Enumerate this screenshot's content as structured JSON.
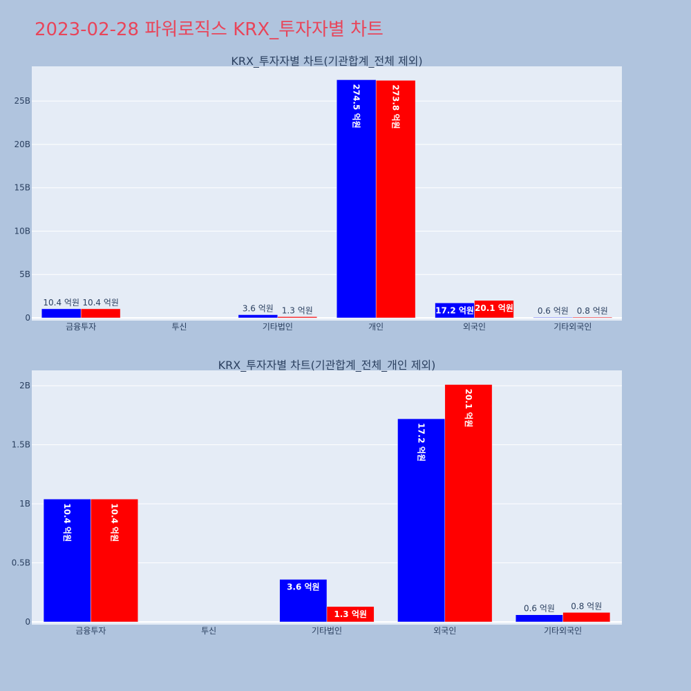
{
  "page": {
    "title": "2023-02-28 파워로직스 KRX_투자자별 차트"
  },
  "colors": {
    "background": "#b0c4de",
    "plot_bg": "#e5ecf6",
    "series_a": "#0000ff",
    "series_b": "#ff0000",
    "title": "#e8455a"
  },
  "chart_data": [
    {
      "type": "bar",
      "title": "KRX_투자자별 차트(기관합계_전체 제외)",
      "categories": [
        "금융투자",
        "투신",
        "기타법인",
        "개인",
        "외국인",
        "기타외국인"
      ],
      "series": [
        {
          "values": [
            1040000000,
            0,
            360000000,
            27450000000,
            1720000000,
            60000000
          ],
          "labels": [
            "10.4 억원",
            "",
            "3.6 억원",
            "274.5 억원",
            "17.2 억원",
            "0.6 억원"
          ]
        },
        {
          "values": [
            1040000000,
            0,
            130000000,
            27380000000,
            2010000000,
            80000000
          ],
          "labels": [
            "10.4 억원",
            "",
            "1.3 억원",
            "273.8 억원",
            "20.1 억원",
            "0.8 억원"
          ]
        }
      ],
      "yticks": [
        0,
        5000000000,
        10000000000,
        15000000000,
        20000000000,
        25000000000
      ],
      "ytick_labels": [
        "0",
        "5B",
        "10B",
        "15B",
        "20B",
        "25B"
      ],
      "ylim": [
        0,
        29000000000
      ]
    },
    {
      "type": "bar",
      "title": "KRX_투자자별 차트(기관합계_전체_개인 제외)",
      "categories": [
        "금융투자",
        "투신",
        "기타법인",
        "외국인",
        "기타외국인"
      ],
      "series": [
        {
          "values": [
            1040000000,
            0,
            360000000,
            1720000000,
            60000000
          ],
          "labels": [
            "10.4 억원",
            "",
            "3.6 억원",
            "17.2 억원",
            "0.6 억원"
          ]
        },
        {
          "values": [
            1040000000,
            0,
            130000000,
            2010000000,
            80000000
          ],
          "labels": [
            "10.4 억원",
            "",
            "1.3 억원",
            "20.1 억원",
            "0.8 억원"
          ]
        }
      ],
      "yticks": [
        0,
        500000000,
        1000000000,
        1500000000,
        2000000000
      ],
      "ytick_labels": [
        "0",
        "0.5B",
        "1B",
        "1.5B",
        "2B"
      ],
      "ylim": [
        0,
        2130000000
      ]
    }
  ]
}
